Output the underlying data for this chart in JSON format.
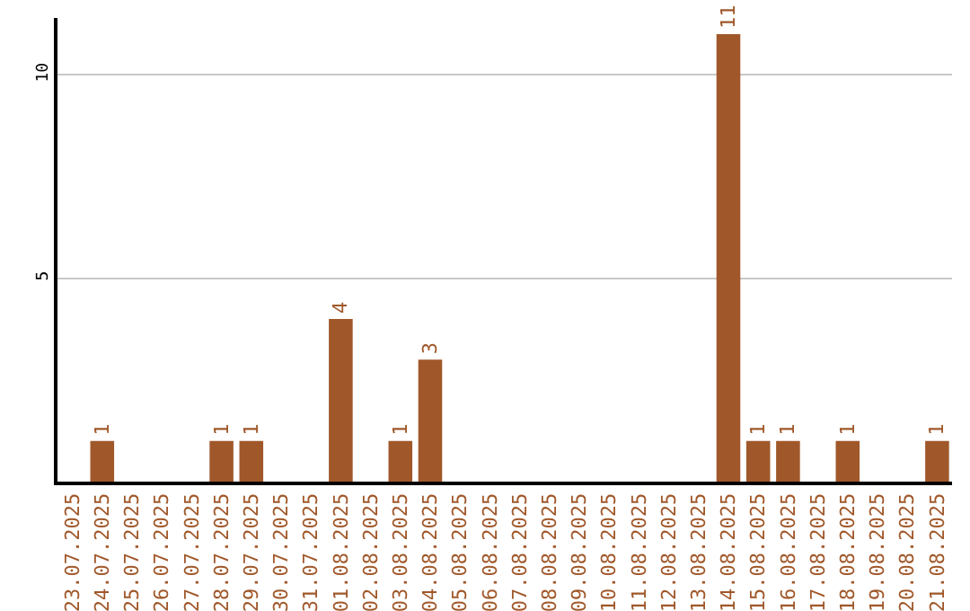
{
  "chart_data": {
    "type": "bar",
    "categories": [
      "23.07.2025",
      "24.07.2025",
      "25.07.2025",
      "26.07.2025",
      "27.07.2025",
      "28.07.2025",
      "29.07.2025",
      "30.07.2025",
      "31.07.2025",
      "01.08.2025",
      "02.08.2025",
      "03.08.2025",
      "04.08.2025",
      "05.08.2025",
      "06.08.2025",
      "07.08.2025",
      "08.08.2025",
      "09.08.2025",
      "10.08.2025",
      "11.08.2025",
      "12.08.2025",
      "13.08.2025",
      "14.08.2025",
      "15.08.2025",
      "16.08.2025",
      "17.08.2025",
      "18.08.2025",
      "19.08.2025",
      "20.08.2025",
      "21.08.2025"
    ],
    "values": [
      0,
      1,
      0,
      0,
      0,
      1,
      1,
      0,
      0,
      4,
      0,
      1,
      3,
      0,
      0,
      0,
      0,
      0,
      0,
      0,
      0,
      0,
      11,
      1,
      1,
      0,
      1,
      0,
      0,
      1
    ],
    "value_labels": [
      null,
      "1",
      null,
      null,
      null,
      "1",
      "1",
      null,
      null,
      "4",
      null,
      "1",
      "3",
      null,
      null,
      null,
      null,
      null,
      null,
      null,
      null,
      null,
      "11",
      "1",
      "1",
      null,
      "1",
      null,
      null,
      "1"
    ],
    "color": "#a0582a",
    "ylim": [
      0,
      11.4
    ],
    "yticks": [
      5,
      10
    ],
    "grid": "y",
    "legend": false
  }
}
